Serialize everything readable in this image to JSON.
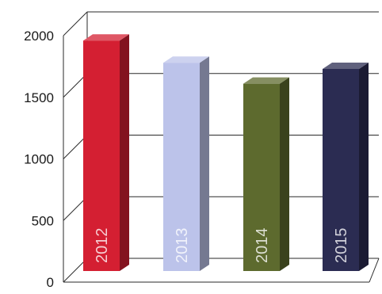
{
  "chart_data": {
    "type": "bar",
    "categories": [
      "2012",
      "2013",
      "2014",
      "2015"
    ],
    "values": [
      1960,
      1780,
      1610,
      1730
    ],
    "ylim": [
      0,
      2000
    ],
    "yticks": [
      0,
      500,
      1000,
      1500,
      2000
    ],
    "ytick_labels": [
      "0",
      "500",
      "1000",
      "1500",
      "2000"
    ],
    "grid": true,
    "legend": "none",
    "bar_label_position": "inside-bottom-vertical",
    "colors": [
      "#d41f32",
      "#bcc3ea",
      "#5d6a2e",
      "#2b2c52"
    ],
    "title": "",
    "xlabel": "",
    "ylabel": ""
  }
}
